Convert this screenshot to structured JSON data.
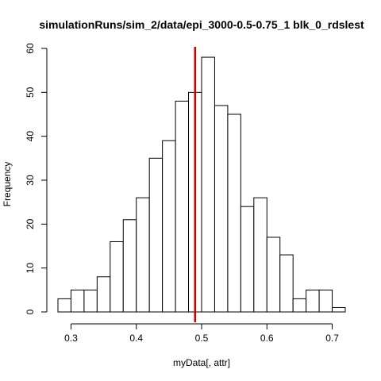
{
  "chart_data": {
    "type": "bar",
    "title": "simulationRuns/sim_2/data/epi_3000-0.5-0.75_1 blk_0_rdslest",
    "xlabel": "myData[, attr]",
    "ylabel": "Frequency",
    "bin_width": 0.02,
    "bins": [
      {
        "x0": 0.28,
        "x1": 0.3,
        "count": 3
      },
      {
        "x0": 0.3,
        "x1": 0.32,
        "count": 5
      },
      {
        "x0": 0.32,
        "x1": 0.34,
        "count": 5
      },
      {
        "x0": 0.34,
        "x1": 0.36,
        "count": 8
      },
      {
        "x0": 0.36,
        "x1": 0.38,
        "count": 16
      },
      {
        "x0": 0.38,
        "x1": 0.4,
        "count": 21
      },
      {
        "x0": 0.4,
        "x1": 0.42,
        "count": 26
      },
      {
        "x0": 0.42,
        "x1": 0.44,
        "count": 35
      },
      {
        "x0": 0.44,
        "x1": 0.46,
        "count": 39
      },
      {
        "x0": 0.46,
        "x1": 0.48,
        "count": 48
      },
      {
        "x0": 0.48,
        "x1": 0.5,
        "count": 50
      },
      {
        "x0": 0.5,
        "x1": 0.52,
        "count": 58
      },
      {
        "x0": 0.52,
        "x1": 0.54,
        "count": 47
      },
      {
        "x0": 0.54,
        "x1": 0.56,
        "count": 45
      },
      {
        "x0": 0.56,
        "x1": 0.58,
        "count": 24
      },
      {
        "x0": 0.58,
        "x1": 0.6,
        "count": 26
      },
      {
        "x0": 0.6,
        "x1": 0.62,
        "count": 17
      },
      {
        "x0": 0.62,
        "x1": 0.64,
        "count": 13
      },
      {
        "x0": 0.64,
        "x1": 0.66,
        "count": 3
      },
      {
        "x0": 0.66,
        "x1": 0.68,
        "count": 5
      },
      {
        "x0": 0.68,
        "x1": 0.7,
        "count": 5
      },
      {
        "x0": 0.7,
        "x1": 0.72,
        "count": 1
      }
    ],
    "xlim": [
      0.28,
      0.72
    ],
    "ylim": [
      0,
      60
    ],
    "xticks": [
      0.3,
      0.4,
      0.5,
      0.6,
      0.7
    ],
    "xtick_labels": [
      "0.3",
      "0.4",
      "0.5",
      "0.6",
      "0.7"
    ],
    "yticks": [
      0,
      10,
      20,
      30,
      40,
      50,
      60
    ],
    "ytick_labels": [
      "0",
      "10",
      "20",
      "30",
      "40",
      "50",
      "60"
    ],
    "reference_line": {
      "x": 0.49,
      "color": "#cc0000"
    },
    "bar_fill": "#ffffff",
    "bar_stroke": "#000000",
    "grid": false
  }
}
